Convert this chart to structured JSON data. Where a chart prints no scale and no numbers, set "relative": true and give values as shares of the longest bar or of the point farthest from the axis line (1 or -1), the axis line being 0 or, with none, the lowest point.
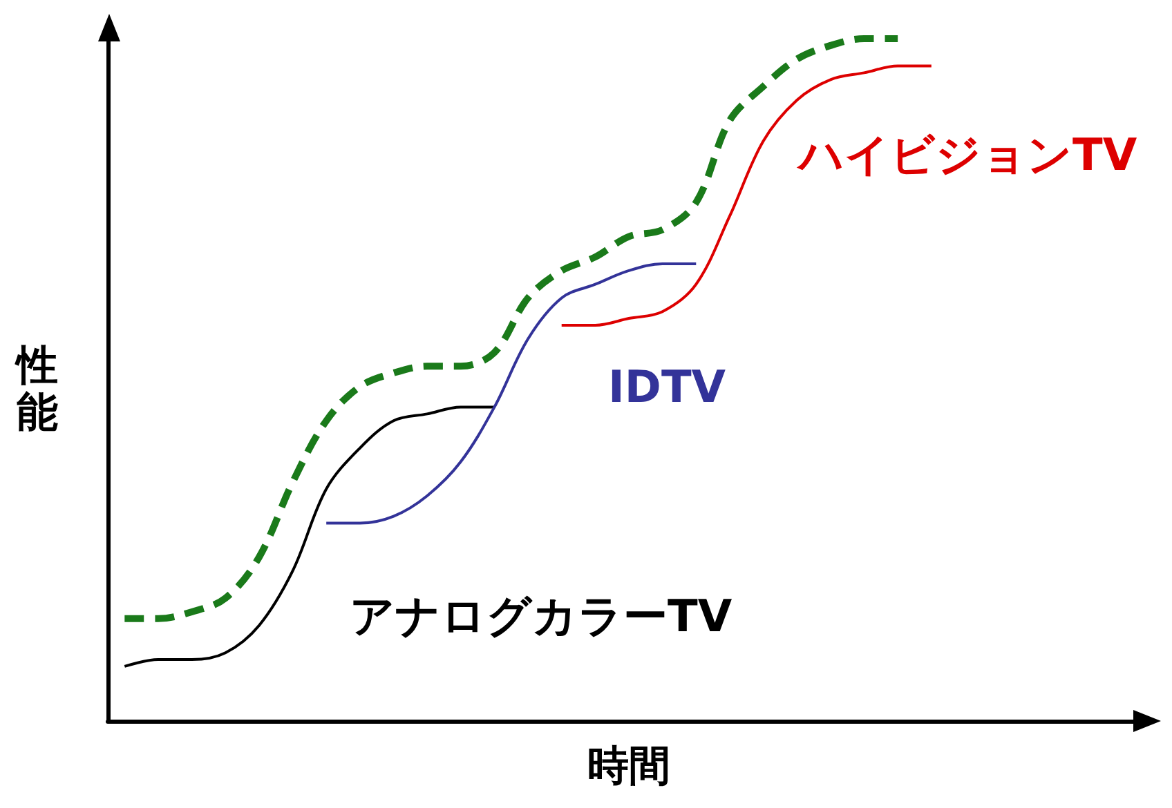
{
  "chart_data": {
    "type": "line",
    "relative": true,
    "xlabel": "時間",
    "ylabel": "性能",
    "grid": false,
    "legend": false,
    "marker": "none",
    "categories": [
      null,
      null,
      null,
      null,
      null,
      null,
      null,
      null,
      null,
      null,
      null,
      null,
      null,
      null,
      null,
      null,
      null,
      null,
      null,
      null,
      null,
      null,
      null,
      null,
      null,
      null,
      null,
      null,
      null,
      null,
      null
    ],
    "series": [
      {
        "name": "アナログカラーTV",
        "color": "#000000",
        "line_style": "solid",
        "values": [
          0.08,
          0.09,
          0.09,
          0.1,
          0.14,
          0.22,
          0.34,
          0.4,
          0.44,
          0.45,
          0.46,
          0.46,
          null,
          null,
          null,
          null,
          null,
          null,
          null,
          null,
          null,
          null,
          null,
          null,
          null,
          null,
          null,
          null,
          null,
          null,
          null
        ]
      },
      {
        "name": "IDTV",
        "color": "#333399",
        "line_style": "solid",
        "values": [
          null,
          null,
          null,
          null,
          null,
          null,
          0.29,
          0.29,
          0.3,
          0.33,
          0.38,
          0.46,
          0.56,
          0.62,
          0.64,
          0.66,
          0.67,
          0.67,
          null,
          null,
          null,
          null,
          null,
          null,
          null,
          null,
          null,
          null,
          null,
          null,
          null
        ]
      },
      {
        "name": "ハイビジョンTV",
        "color": "#dd0000",
        "line_style": "solid",
        "values": [
          null,
          null,
          null,
          null,
          null,
          null,
          null,
          null,
          null,
          null,
          null,
          null,
          null,
          0.58,
          0.58,
          0.59,
          0.6,
          0.64,
          0.74,
          0.85,
          0.91,
          0.94,
          0.95,
          0.96,
          0.96,
          null,
          null,
          null,
          null,
          null,
          null
        ]
      },
      {
        "color": "#1a7a1a",
        "line_style": "dashed",
        "values": [
          0.15,
          0.15,
          0.16,
          0.18,
          0.24,
          0.35,
          0.44,
          0.49,
          0.51,
          0.52,
          0.52,
          0.54,
          0.62,
          0.66,
          0.68,
          0.71,
          0.72,
          0.76,
          0.88,
          0.93,
          0.97,
          0.99,
          1.0,
          1.0,
          null,
          null,
          null,
          null,
          null,
          null,
          null
        ]
      }
    ]
  }
}
